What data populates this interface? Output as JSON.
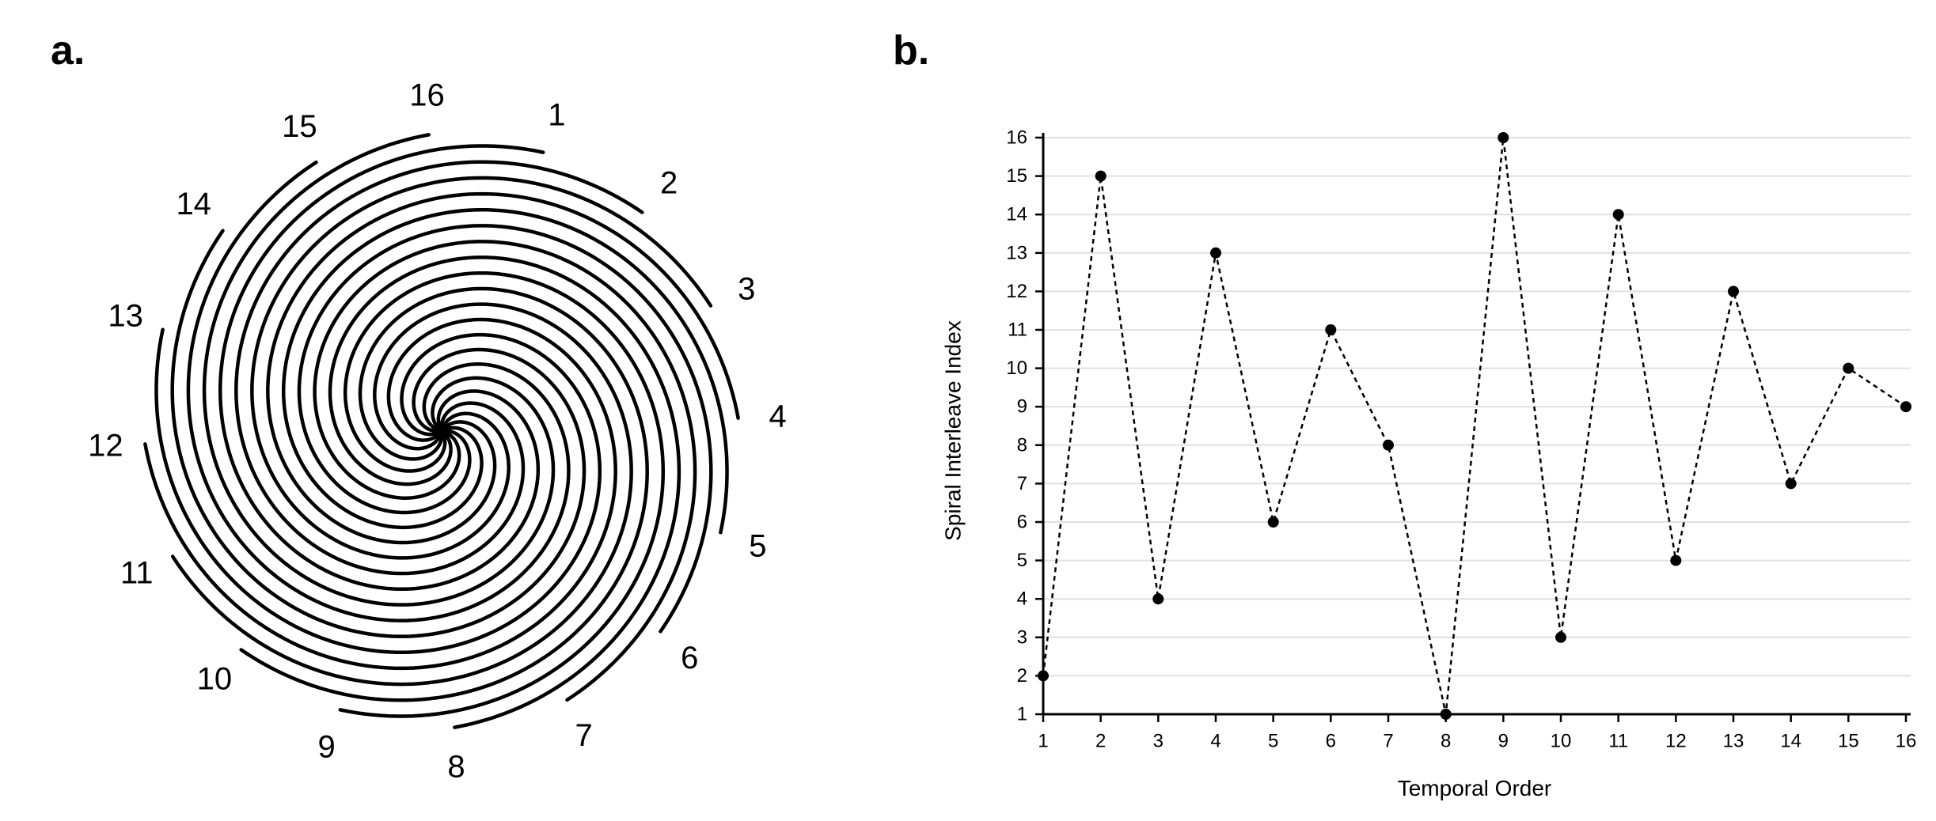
{
  "panels": {
    "a_label": "a.",
    "b_label": "b."
  },
  "spiral": {
    "arm_labels": [
      "1",
      "2",
      "3",
      "4",
      "5",
      "6",
      "7",
      "8",
      "9",
      "10",
      "11",
      "12",
      "13",
      "14",
      "15",
      "16"
    ],
    "arm_color": "#000000"
  },
  "chart_data": {
    "type": "line",
    "xlabel": "Temporal Order",
    "ylabel": "Spiral Interleave Index",
    "x": [
      1,
      2,
      3,
      4,
      5,
      6,
      7,
      8,
      9,
      10,
      11,
      12,
      13,
      14,
      15,
      16
    ],
    "values": [
      2,
      15,
      4,
      13,
      6,
      11,
      8,
      1,
      16,
      3,
      14,
      5,
      12,
      7,
      10,
      9
    ],
    "xlim": [
      1,
      16
    ],
    "ylim": [
      1,
      16
    ],
    "x_ticks": [
      "1",
      "2",
      "3",
      "4",
      "5",
      "6",
      "7",
      "8",
      "9",
      "10",
      "11",
      "12",
      "13",
      "14",
      "15",
      "16"
    ],
    "y_ticks": [
      "1",
      "2",
      "3",
      "4",
      "5",
      "6",
      "7",
      "8",
      "9",
      "10",
      "11",
      "12",
      "13",
      "14",
      "15",
      "16"
    ],
    "grid": true,
    "line_style": "dotted",
    "marker": "circle",
    "line_color": "#000000",
    "grid_color": "#e0e0e0"
  }
}
